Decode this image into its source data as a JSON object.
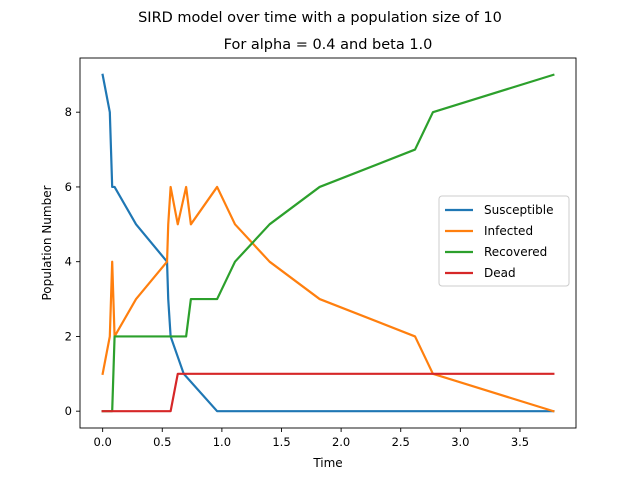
{
  "chart_data": {
    "type": "line",
    "title": "SIRD model over time with a population size of 10",
    "subtitle": "For alpha = 0.4 and beta 1.0",
    "xlabel": "Time",
    "ylabel": "Population Number",
    "xlim": [
      -0.19,
      3.97
    ],
    "ylim": [
      -0.45,
      9.45
    ],
    "xticks": [
      "0.0",
      "0.5",
      "1.0",
      "1.5",
      "2.0",
      "2.5",
      "3.0",
      "3.5"
    ],
    "yticks": [
      "0",
      "2",
      "4",
      "6",
      "8"
    ],
    "grid": false,
    "legend_position": "center-right",
    "series": [
      {
        "name": "Susceptible",
        "color": "#1f77b4",
        "points": [
          [
            0.0,
            9
          ],
          [
            0.06,
            8
          ],
          [
            0.07,
            7
          ],
          [
            0.08,
            6
          ],
          [
            0.1,
            6
          ],
          [
            0.28,
            5
          ],
          [
            0.54,
            4
          ],
          [
            0.55,
            3
          ],
          [
            0.57,
            2
          ],
          [
            0.68,
            1
          ],
          [
            0.96,
            0
          ],
          [
            3.78,
            0
          ]
        ]
      },
      {
        "name": "Infected",
        "color": "#ff7f0e",
        "points": [
          [
            0.0,
            1
          ],
          [
            0.06,
            2
          ],
          [
            0.07,
            3
          ],
          [
            0.08,
            4
          ],
          [
            0.09,
            3
          ],
          [
            0.1,
            2
          ],
          [
            0.28,
            3
          ],
          [
            0.54,
            4
          ],
          [
            0.55,
            5
          ],
          [
            0.57,
            6
          ],
          [
            0.63,
            5
          ],
          [
            0.7,
            6
          ],
          [
            0.74,
            5
          ],
          [
            0.96,
            6
          ],
          [
            1.11,
            5
          ],
          [
            1.4,
            4
          ],
          [
            1.82,
            3
          ],
          [
            2.62,
            2
          ],
          [
            2.77,
            1
          ],
          [
            3.78,
            0
          ]
        ]
      },
      {
        "name": "Recovered",
        "color": "#2ca02c",
        "points": [
          [
            0.0,
            0
          ],
          [
            0.08,
            0
          ],
          [
            0.1,
            2
          ],
          [
            0.57,
            2
          ],
          [
            0.7,
            2
          ],
          [
            0.74,
            3
          ],
          [
            0.96,
            3
          ],
          [
            1.11,
            4
          ],
          [
            1.4,
            5
          ],
          [
            1.82,
            6
          ],
          [
            2.62,
            7
          ],
          [
            2.77,
            8
          ],
          [
            3.78,
            9
          ]
        ]
      },
      {
        "name": "Dead",
        "color": "#d62728",
        "points": [
          [
            0.0,
            0
          ],
          [
            0.57,
            0
          ],
          [
            0.63,
            1
          ],
          [
            3.78,
            1
          ]
        ]
      }
    ]
  }
}
